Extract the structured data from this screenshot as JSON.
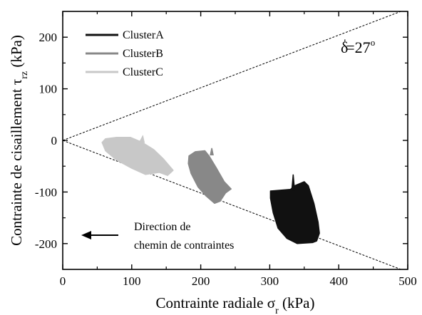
{
  "chart_data": {
    "type": "scatter",
    "xlabel_main": "Contrainte radiale σ",
    "xlabel_sub": "r",
    "xlabel_unit": " (kPa)",
    "ylabel_main": "Contrainte de cisaillement τ",
    "ylabel_sub": "rz",
    "ylabel_unit": " (kPa)",
    "xlim": [
      0,
      500
    ],
    "ylim": [
      -250,
      250
    ],
    "x_ticks": [
      0,
      100,
      200,
      300,
      400,
      500
    ],
    "x_tick_labels": [
      "0",
      "100",
      "200",
      "300",
      "400",
      "500"
    ],
    "y_ticks": [
      200,
      100,
      0,
      -100,
      -200
    ],
    "y_tick_labels": [
      "200",
      "100",
      "0",
      "-100",
      "-200"
    ],
    "series": [
      {
        "name": "ClusterA",
        "color": "#111111",
        "outline": [
          [
            301,
            -98
          ],
          [
            330,
            -95
          ],
          [
            336,
            -88
          ],
          [
            350,
            -80
          ],
          [
            356,
            -88
          ],
          [
            364,
            -122
          ],
          [
            370,
            -158
          ],
          [
            372,
            -180
          ],
          [
            368,
            -195
          ],
          [
            362,
            -198
          ],
          [
            340,
            -200
          ],
          [
            325,
            -190
          ],
          [
            312,
            -170
          ],
          [
            305,
            -140
          ],
          [
            301,
            -112
          ]
        ],
        "spike": [
          [
            332,
            -96
          ],
          [
            334,
            -66
          ],
          [
            336,
            -96
          ]
        ]
      },
      {
        "name": "ClusterB",
        "color": "#888888",
        "outline": [
          [
            183,
            -30
          ],
          [
            192,
            -22
          ],
          [
            206,
            -20
          ],
          [
            212,
            -30
          ],
          [
            222,
            -52
          ],
          [
            234,
            -80
          ],
          [
            244,
            -94
          ],
          [
            236,
            -102
          ],
          [
            228,
            -118
          ],
          [
            220,
            -122
          ],
          [
            208,
            -108
          ],
          [
            196,
            -90
          ],
          [
            186,
            -64
          ],
          [
            182,
            -45
          ]
        ],
        "spike": [
          [
            214,
            -28
          ],
          [
            216,
            -15
          ],
          [
            218,
            -28
          ]
        ]
      },
      {
        "name": "ClusterC",
        "color": "#c8c8c8",
        "outline": [
          [
            57,
            -4
          ],
          [
            62,
            3
          ],
          [
            78,
            6
          ],
          [
            98,
            6
          ],
          [
            112,
            -2
          ],
          [
            120,
            -8
          ],
          [
            132,
            -18
          ],
          [
            146,
            -36
          ],
          [
            160,
            -58
          ],
          [
            152,
            -68
          ],
          [
            140,
            -62
          ],
          [
            120,
            -66
          ],
          [
            100,
            -54
          ],
          [
            78,
            -38
          ],
          [
            62,
            -20
          ]
        ],
        "spike": [
          [
            112,
            -2
          ],
          [
            116,
            8
          ],
          [
            118,
            -4
          ]
        ]
      }
    ],
    "reference_lines": [
      {
        "x": [
          0,
          490
        ],
        "y": [
          0,
          250
        ]
      },
      {
        "x": [
          0,
          490
        ],
        "y": [
          0,
          -250
        ]
      }
    ],
    "annotations": {
      "delta_main": "δ",
      "delta_prime": "'",
      "delta_value": "=27",
      "delta_degree": "o",
      "arrow_text_line1": "Direction de",
      "arrow_text_line2": "chemin de contraintes"
    },
    "legend_position": "top-left"
  }
}
